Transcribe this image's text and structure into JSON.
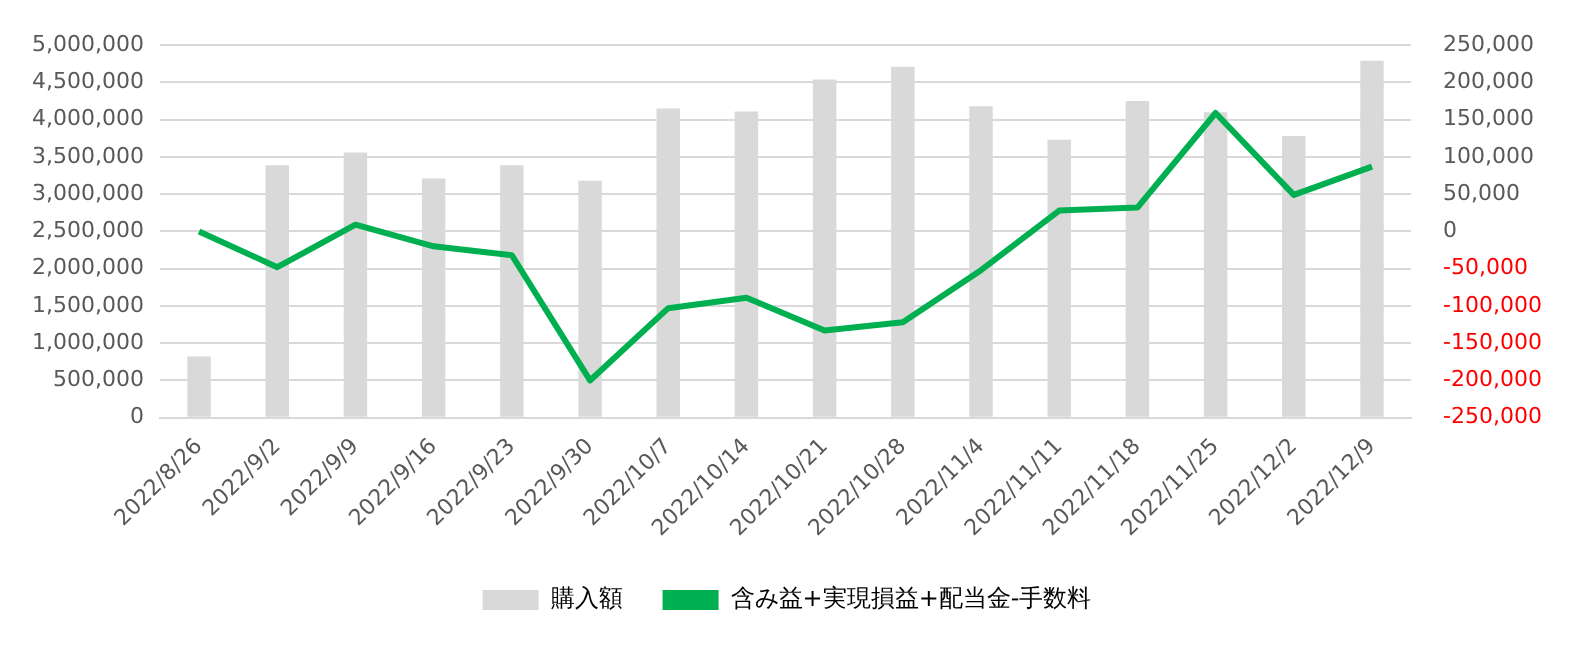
{
  "chart_data": {
    "type": "bar",
    "categories": [
      "2022/8/26",
      "2022/9/2",
      "2022/9/9",
      "2022/9/16",
      "2022/9/23",
      "2022/9/30",
      "2022/10/7",
      "2022/10/14",
      "2022/10/21",
      "2022/10/28",
      "2022/11/4",
      "2022/11/11",
      "2022/11/18",
      "2022/11/25",
      "2022/12/2",
      "2022/12/9"
    ],
    "series": [
      {
        "name": "購入額",
        "color": "#d9d9d9",
        "values": [
          820000,
          3390000,
          3560000,
          3210000,
          3390000,
          3180000,
          4150000,
          4110000,
          4540000,
          4710000,
          4180000,
          3730000,
          4250000,
          4100000,
          3780000,
          4790000
        ]
      },
      {
        "name": "含み益+実現損益+配当金-手数料",
        "type": "line",
        "axis": "y2",
        "color": "#00b050",
        "values": [
          0,
          -48000,
          9000,
          -20000,
          -32000,
          -200000,
          -103000,
          -89000,
          -133000,
          -122000,
          -52000,
          28000,
          32000,
          159000,
          49000,
          87000
        ]
      }
    ],
    "ylim": [
      0,
      5000000
    ],
    "yticks": [
      0,
      {
        "value": 500000,
        "label": "500,000"
      },
      {
        "value": 1000000,
        "label": "1,000,000"
      },
      {
        "value": 1500000,
        "label": "1,500,000"
      },
      {
        "value": 2000000,
        "label": "2,000,000"
      },
      {
        "value": 2500000,
        "label": "2,500,000"
      },
      {
        "value": 3000000,
        "label": "3,000,000"
      },
      {
        "value": 3500000,
        "label": "3,500,000"
      },
      {
        "value": 4000000,
        "label": "4,000,000"
      },
      {
        "value": 4500000,
        "label": "4,500,000"
      },
      {
        "value": 5000000,
        "label": "5,000,000"
      }
    ],
    "y2lim": [
      -250000,
      250000
    ],
    "y2ticks": [
      {
        "value": -250000,
        "label": "-250,000"
      },
      {
        "value": -200000,
        "label": "-200,000"
      },
      {
        "value": -150000,
        "label": "-150,000"
      },
      {
        "value": -100000,
        "label": "-100,000"
      },
      {
        "value": -50000,
        "label": "-50,000"
      },
      0,
      {
        "value": 50000,
        "label": "50,000"
      },
      {
        "value": 100000,
        "label": "100,000"
      },
      {
        "value": 150000,
        "label": "150,000"
      },
      {
        "value": 200000,
        "label": "200,000"
      },
      {
        "value": 250000,
        "label": "250,000"
      }
    ],
    "grid": "y",
    "legend": "bottom",
    "marker": "none",
    "line_style": "solid"
  }
}
